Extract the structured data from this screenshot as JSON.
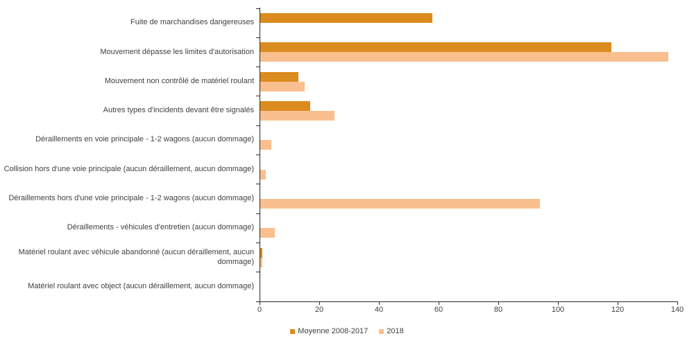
{
  "chart_data": {
    "type": "bar",
    "orientation": "horizontal",
    "title": "",
    "xlabel": "",
    "ylabel": "",
    "xlim": [
      0,
      140
    ],
    "xticks": [
      0,
      20,
      40,
      60,
      80,
      100,
      120,
      140
    ],
    "grid": false,
    "legend_position": "bottom",
    "categories": [
      "Fuite de marchandises dangereuses",
      "Mouvement dépasse les limites d'autorisation",
      "Mouvement non contrôlé de matériel roulant",
      "Autres types d'incidents devant être signalés",
      "Déraillements en voie principale - 1-2 wagons (aucun dommage)",
      "Collision hors d'une voie principale (aucun déraillement, aucun dommage)",
      "Déraillements hors d'une voie principale - 1-2 wagons (aucun dommage)",
      "Déraillements - véhicules d'entretien (aucun dommage)",
      "Matériel roulant avec véhicule abandonné (aucun déraillement, aucun dommage)",
      "Matériel roulant avec object (aucun déraillement, aucun dommage)"
    ],
    "series": [
      {
        "name": "Moyenne 2008-2017",
        "color": "#DB8C1F",
        "values": [
          58,
          118,
          13,
          17,
          0,
          0,
          0,
          0,
          1,
          0
        ]
      },
      {
        "name": "2018",
        "color": "#FABF8F",
        "values": [
          0,
          137,
          15,
          25,
          4,
          2,
          94,
          5,
          1,
          0
        ]
      }
    ],
    "colors": {
      "axis_line": "#262626",
      "text": "#404040",
      "background": "#ffffff"
    }
  }
}
